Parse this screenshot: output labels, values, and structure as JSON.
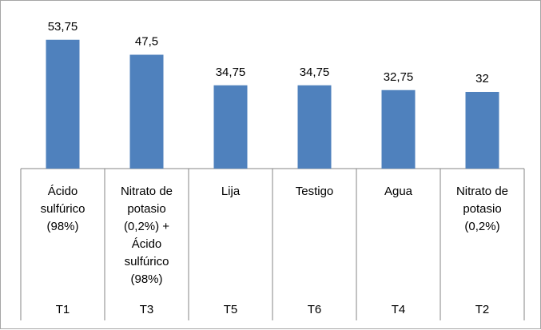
{
  "chart_data": {
    "type": "bar",
    "categories": [
      "Ácido sulfúrico (98%)",
      "Nitrato de potasio (0,2%) + Ácido sulfúrico (98%)",
      "Lija",
      "Testigo",
      "Agua",
      "Nitrato de potasio (0,2%)"
    ],
    "category_lines": [
      [
        "Ácido",
        "sulfúrico",
        "(98%)"
      ],
      [
        "Nitrato de",
        "potasio",
        "(0,2%) +",
        "Ácido",
        "sulfúrico",
        "(98%)"
      ],
      [
        "Lija"
      ],
      [
        "Testigo"
      ],
      [
        "Agua"
      ],
      [
        "Nitrato de",
        "potasio",
        "(0,2%)"
      ]
    ],
    "codes": [
      "T1",
      "T3",
      "T5",
      "T6",
      "T4",
      "T2"
    ],
    "values": [
      53.75,
      47.5,
      34.75,
      34.75,
      32.75,
      32
    ],
    "value_labels": [
      "53,75",
      "47,5",
      "34,75",
      "34,75",
      "32,75",
      "32"
    ],
    "title": "",
    "xlabel": "",
    "ylabel": "",
    "ylim": [
      0,
      60
    ],
    "grid": false,
    "legend": "none",
    "bar_color": "#4f81bd"
  }
}
